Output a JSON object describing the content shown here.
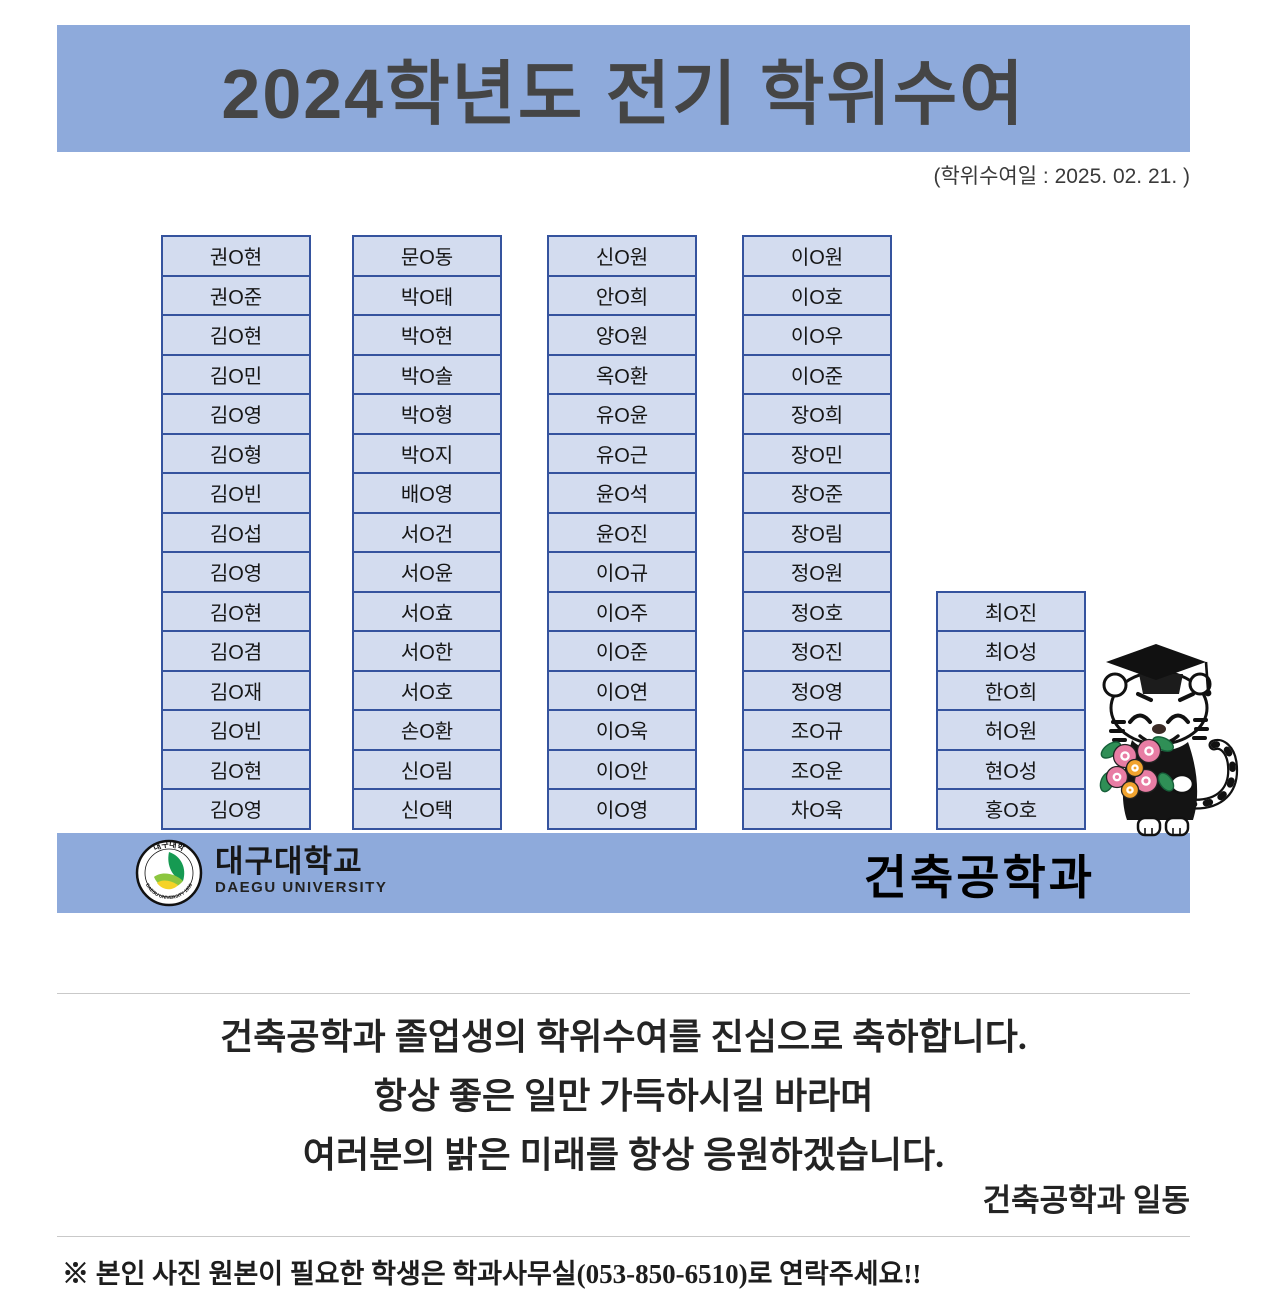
{
  "colors": {
    "band": "#8EAADB",
    "cell_fill": "#D3DCEF",
    "cell_border": "#35539E",
    "title_text": "#454545",
    "divider": "#c9c9c9"
  },
  "header": {
    "title": "2024학년도 전기 학위수여",
    "subtitle": "(학위수여일 : 2025. 02. 21. )"
  },
  "grid": {
    "columns": [
      {
        "names": [
          "권O현",
          "권O준",
          "김O현",
          "김O민",
          "김O영",
          "김O형",
          "김O빈",
          "김O섭",
          "김O영",
          "김O현",
          "김O겸",
          "김O재",
          "김O빈",
          "김O현",
          "김O영"
        ]
      },
      {
        "names": [
          "문O동",
          "박O태",
          "박O현",
          "박O솔",
          "박O형",
          "박O지",
          "배O영",
          "서O건",
          "서O윤",
          "서O효",
          "서O한",
          "서O호",
          "손O환",
          "신O림",
          "신O택"
        ]
      },
      {
        "names": [
          "신O원",
          "안O희",
          "양O원",
          "옥O환",
          "유O윤",
          "유O근",
          "윤O석",
          "윤O진",
          "이O규",
          "이O주",
          "이O준",
          "이O연",
          "이O욱",
          "이O안",
          "이O영"
        ]
      },
      {
        "names": [
          "이O원",
          "이O호",
          "이O우",
          "이O준",
          "장O희",
          "장O민",
          "장O준",
          "장O림",
          "정O원",
          "정O호",
          "정O진",
          "정O영",
          "조O규",
          "조O운",
          "차O욱"
        ]
      },
      {
        "names": [
          "최O진",
          "최O성",
          "한O희",
          "허O원",
          "현O성",
          "홍O호"
        ]
      }
    ]
  },
  "footer_bar": {
    "university_kr": "대구대학교",
    "university_en": "DAEGU UNIVERSITY",
    "emblem_top": "대구대학",
    "emblem_bottom": "DAEGU UNIVERSITY 1956",
    "department": "건축공학과"
  },
  "message": {
    "line1": "건축공학과 졸업생의 학위수여를 진심으로 축하합니다.",
    "line2": "항상 좋은 일만 가득하시길 바라며",
    "line3": "여러분의 밝은 미래를 항상 응원하겠습니다.",
    "signature": "건축공학과 일동"
  },
  "note": {
    "text": "※ 본인 사진 원본이 필요한 학생은 학과사무실(053-850-6510)로 연락주세요!!"
  }
}
